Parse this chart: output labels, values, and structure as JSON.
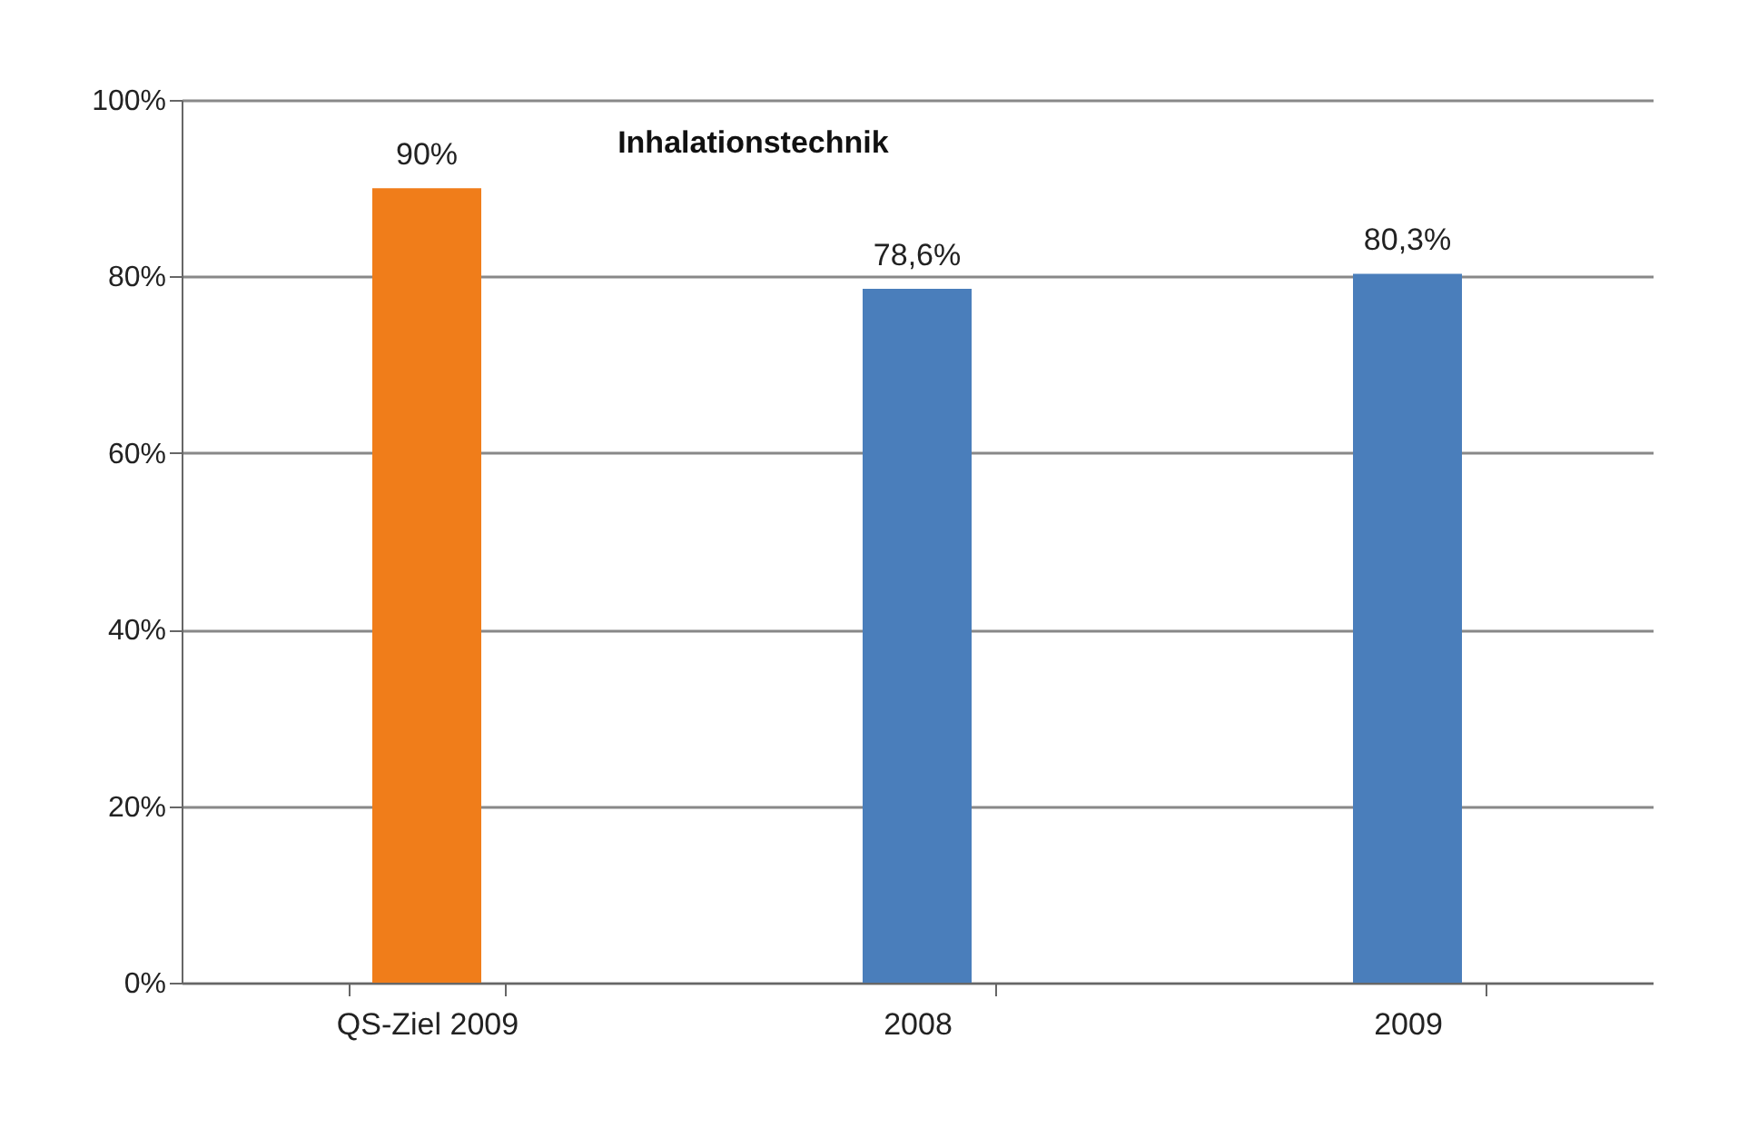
{
  "chart_data": {
    "type": "bar",
    "title": "Inhalationstechnik",
    "categories": [
      "QS-Ziel 2009",
      "2008",
      "2009"
    ],
    "values": [
      90,
      78.6,
      80.3
    ],
    "colors": [
      "#f07d1a",
      "#4a7ebb",
      "#4a7ebb"
    ],
    "value_labels": [
      "90%",
      "78,6%",
      "80,3%"
    ],
    "ylim": [
      0,
      100
    ],
    "yticks": [
      {
        "value": 0,
        "label": "0%"
      },
      {
        "value": 20,
        "label": "20%"
      },
      {
        "value": 40,
        "label": "40%"
      },
      {
        "value": 60,
        "label": "60%"
      },
      {
        "value": 80,
        "label": "80%"
      },
      {
        "value": 100,
        "label": "100%"
      }
    ],
    "grid": "y"
  }
}
